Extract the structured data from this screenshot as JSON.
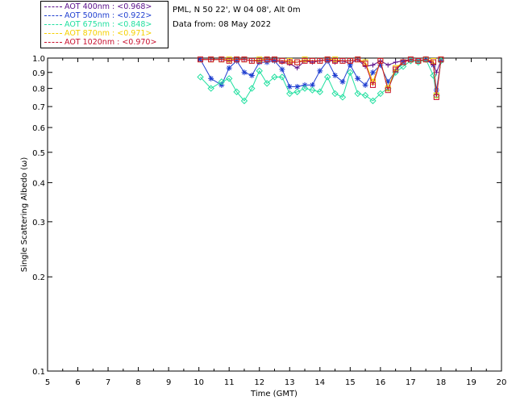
{
  "info": {
    "location": "PML, N 50 22', W 04 08', Alt 0m",
    "date_line": "Data from: 08 May 2022"
  },
  "legend": [
    {
      "label": "AOT  400nm : <0.968>",
      "color": "#5a0f8c"
    },
    {
      "label": "AOT  500nm : <0.922>",
      "color": "#1f3fd0"
    },
    {
      "label": "AOT  675nm : <0.848>",
      "color": "#22e0a0"
    },
    {
      "label": "AOT  870nm : <0.971>",
      "color": "#f5d000"
    },
    {
      "label": "AOT 1020nm : <0.970>",
      "color": "#c8102e"
    }
  ],
  "chart_data": {
    "type": "line",
    "xlabel": "Time (GMT)",
    "ylabel": "Single Scattering Albedo (ω)",
    "xlim": [
      5,
      20
    ],
    "ylim": [
      0.1,
      1.0
    ],
    "y_scale": "log",
    "x_ticks": [
      "5",
      "6",
      "7",
      "8",
      "9",
      "10",
      "11",
      "12",
      "13",
      "14",
      "15",
      "16",
      "17",
      "18",
      "19",
      "20"
    ],
    "y_ticks": [
      "0.1",
      "0.2",
      "0.3",
      "0.4",
      "0.5",
      "0.6",
      "0.7",
      "0.8",
      "0.9",
      "1.0"
    ],
    "series": [
      {
        "name": "AOT  400nm",
        "color": "#5a0f8c",
        "marker": "plus",
        "x": [
          10.05,
          10.4,
          10.75,
          11.0,
          11.25,
          11.5,
          11.75,
          12.0,
          12.25,
          12.5,
          12.75,
          13.0,
          13.25,
          13.5,
          13.75,
          14.0,
          14.25,
          14.5,
          14.75,
          15.0,
          15.25,
          15.5,
          15.75,
          16.0,
          16.25,
          16.5,
          16.75,
          17.0,
          17.25,
          17.5,
          17.75,
          17.85,
          18.0
        ],
        "y": [
          0.99,
          0.99,
          0.99,
          0.98,
          0.99,
          0.99,
          0.98,
          0.98,
          0.99,
          0.98,
          0.97,
          0.96,
          0.93,
          0.98,
          0.97,
          0.98,
          0.99,
          0.97,
          0.98,
          0.96,
          0.99,
          0.94,
          0.95,
          0.98,
          0.95,
          0.97,
          0.98,
          0.99,
          0.98,
          0.99,
          0.96,
          0.9,
          0.98
        ]
      },
      {
        "name": "AOT  500nm",
        "color": "#1f3fd0",
        "marker": "star",
        "x": [
          10.05,
          10.4,
          10.75,
          11.0,
          11.25,
          11.5,
          11.75,
          12.0,
          12.25,
          12.5,
          12.75,
          13.0,
          13.25,
          13.5,
          13.75,
          14.0,
          14.25,
          14.5,
          14.75,
          15.0,
          15.25,
          15.5,
          15.75,
          16.0,
          16.25,
          16.5,
          16.75,
          17.0,
          17.25,
          17.5,
          17.75,
          17.85,
          18.0
        ],
        "y": [
          0.99,
          0.86,
          0.82,
          0.93,
          0.98,
          0.9,
          0.88,
          0.97,
          0.97,
          0.98,
          0.92,
          0.81,
          0.81,
          0.82,
          0.82,
          0.91,
          0.98,
          0.88,
          0.84,
          0.95,
          0.86,
          0.82,
          0.9,
          0.95,
          0.84,
          0.91,
          0.97,
          0.99,
          0.98,
          0.99,
          0.95,
          0.79,
          0.98
        ]
      },
      {
        "name": "AOT  675nm",
        "color": "#22e0a0",
        "marker": "diamond",
        "x": [
          10.05,
          10.4,
          10.75,
          11.0,
          11.25,
          11.5,
          11.75,
          12.0,
          12.25,
          12.5,
          12.75,
          13.0,
          13.25,
          13.5,
          13.75,
          14.0,
          14.25,
          14.5,
          14.75,
          15.0,
          15.25,
          15.5,
          15.75,
          16.0,
          16.25,
          16.5,
          16.75,
          17.0,
          17.25,
          17.5,
          17.75,
          17.85,
          18.0
        ],
        "y": [
          0.87,
          0.8,
          0.84,
          0.86,
          0.78,
          0.73,
          0.8,
          0.91,
          0.83,
          0.87,
          0.87,
          0.77,
          0.78,
          0.8,
          0.79,
          0.78,
          0.87,
          0.77,
          0.75,
          0.9,
          0.77,
          0.76,
          0.73,
          0.77,
          0.8,
          0.9,
          0.94,
          0.98,
          0.97,
          0.99,
          0.88,
          0.76,
          0.98
        ]
      },
      {
        "name": "AOT  870nm",
        "color": "#f5d000",
        "marker": "square",
        "x": [
          10.05,
          10.4,
          10.75,
          11.0,
          11.25,
          11.5,
          11.75,
          12.0,
          12.25,
          12.5,
          12.75,
          13.0,
          13.25,
          13.5,
          13.75,
          14.0,
          14.25,
          14.5,
          14.75,
          15.0,
          15.25,
          15.5,
          15.75,
          16.0,
          16.25,
          16.5,
          16.75,
          17.0,
          17.25,
          17.5,
          17.75,
          17.85,
          18.0
        ],
        "y": [
          0.99,
          0.99,
          0.99,
          0.99,
          0.99,
          0.99,
          0.98,
          0.99,
          0.99,
          0.99,
          0.98,
          0.98,
          0.97,
          0.99,
          0.98,
          0.98,
          0.99,
          0.99,
          0.98,
          0.98,
          0.99,
          0.97,
          0.84,
          0.98,
          0.8,
          0.93,
          0.97,
          0.99,
          0.98,
          0.99,
          0.98,
          0.76,
          0.99
        ]
      },
      {
        "name": "AOT 1020nm",
        "color": "#c8102e",
        "marker": "square",
        "x": [
          10.05,
          10.4,
          10.75,
          11.0,
          11.25,
          11.5,
          11.75,
          12.0,
          12.25,
          12.5,
          12.75,
          13.0,
          13.25,
          13.5,
          13.75,
          14.0,
          14.25,
          14.5,
          14.75,
          15.0,
          15.25,
          15.5,
          15.75,
          16.0,
          16.25,
          16.5,
          16.75,
          17.0,
          17.25,
          17.5,
          17.75,
          17.85,
          18.0
        ],
        "y": [
          0.99,
          0.99,
          0.99,
          0.98,
          0.99,
          0.99,
          0.98,
          0.98,
          0.99,
          0.99,
          0.98,
          0.97,
          0.97,
          0.98,
          0.98,
          0.98,
          0.99,
          0.98,
          0.98,
          0.98,
          0.99,
          0.96,
          0.82,
          0.98,
          0.79,
          0.92,
          0.97,
          0.99,
          0.98,
          0.99,
          0.97,
          0.75,
          0.99
        ]
      }
    ]
  }
}
